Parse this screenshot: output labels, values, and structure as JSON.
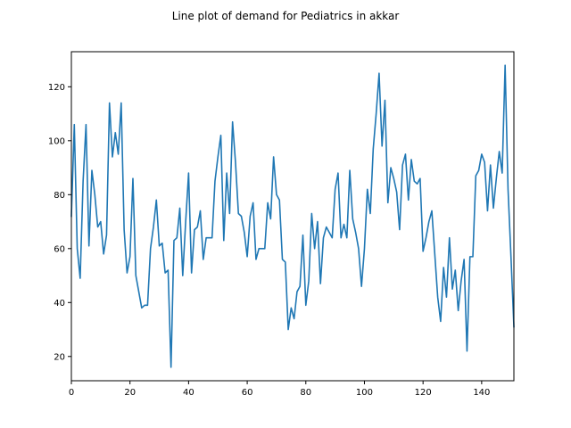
{
  "chart_data": {
    "type": "line",
    "title": "Line plot of demand for Pediatrics in akkar",
    "xlabel": "",
    "ylabel": "",
    "xlim": [
      0,
      151
    ],
    "ylim": [
      11,
      133
    ],
    "x_ticks": [
      0,
      20,
      40,
      60,
      80,
      100,
      120,
      140
    ],
    "y_ticks": [
      20,
      40,
      60,
      80,
      100,
      120
    ],
    "grid": false,
    "colors": {
      "line": "#1f77b4",
      "axes": "#000000",
      "background": "#ffffff"
    },
    "series": [
      {
        "x": [
          0,
          1,
          2,
          3,
          4,
          5,
          6,
          7,
          8,
          9,
          10,
          11,
          12,
          13,
          14,
          15,
          16,
          17,
          18,
          19,
          20,
          21,
          22,
          23,
          24,
          25,
          26,
          27,
          28,
          29,
          30,
          31,
          32,
          33,
          34,
          35,
          36,
          37,
          38,
          39,
          40,
          41,
          42,
          43,
          44,
          45,
          46,
          47,
          48,
          49,
          50,
          51,
          52,
          53,
          54,
          55,
          56,
          57,
          58,
          59,
          60,
          61,
          62,
          63,
          64,
          65,
          66,
          67,
          68,
          69,
          70,
          71,
          72,
          73,
          74,
          75,
          76,
          77,
          78,
          79,
          80,
          81,
          82,
          83,
          84,
          85,
          86,
          87,
          88,
          89,
          90,
          91,
          92,
          93,
          94,
          95,
          96,
          97,
          98,
          99,
          100,
          101,
          102,
          103,
          104,
          105,
          106,
          107,
          108,
          109,
          110,
          111,
          112,
          113,
          114,
          115,
          116,
          117,
          118,
          119,
          120,
          121,
          122,
          123,
          124,
          125,
          126,
          127,
          128,
          129,
          130,
          131,
          132,
          133,
          134,
          135,
          136,
          137,
          138,
          139,
          140,
          141,
          142,
          143,
          144,
          145,
          146,
          147,
          148,
          149,
          150,
          151
        ],
        "values": [
          72,
          106,
          60,
          49,
          85,
          106,
          61,
          89,
          80,
          68,
          70,
          58,
          65,
          114,
          94,
          103,
          95,
          114,
          67,
          51,
          57,
          86,
          50,
          44,
          38,
          39,
          39,
          60,
          68,
          78,
          61,
          62,
          51,
          52,
          16,
          63,
          64,
          75,
          50,
          70,
          88,
          51,
          67,
          68,
          74,
          56,
          64,
          64,
          64,
          85,
          94,
          102,
          63,
          88,
          73,
          107,
          92,
          73,
          72,
          66,
          57,
          72,
          77,
          56,
          60,
          60,
          60,
          77,
          71,
          94,
          80,
          78,
          56,
          55,
          30,
          38,
          34,
          44,
          46,
          65,
          39,
          48,
          73,
          60,
          70,
          47,
          64,
          68,
          66,
          64,
          82,
          88,
          64,
          69,
          64,
          89,
          71,
          66,
          60,
          46,
          60,
          82,
          73,
          97,
          110,
          125,
          98,
          115,
          77,
          90,
          86,
          81,
          67,
          91,
          95,
          78,
          93,
          85,
          84,
          86,
          59,
          64,
          70,
          74,
          58,
          42,
          33,
          53,
          42,
          64,
          45,
          52,
          37,
          48,
          56,
          22,
          57,
          57,
          87,
          89,
          95,
          92,
          74,
          91,
          75,
          86,
          96,
          88,
          128,
          82,
          57,
          31
        ]
      }
    ]
  }
}
